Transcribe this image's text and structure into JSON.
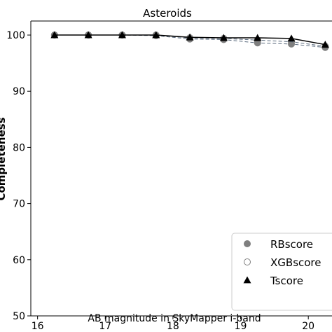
{
  "chart_data": {
    "type": "line",
    "title": "Asteroids",
    "xlabel": "AB magnitude in SkyMapper i-band",
    "ylabel": "Completeness",
    "xlim": [
      15.9,
      20.35
    ],
    "ylim": [
      50,
      102.5
    ],
    "xticks": [
      16,
      17,
      18,
      19,
      20
    ],
    "yticks": [
      50,
      60,
      70,
      80,
      90,
      100
    ],
    "grid": false,
    "legend_position": "bottom-right",
    "x": [
      16.25,
      16.75,
      17.25,
      17.75,
      18.25,
      18.75,
      19.25,
      19.75,
      20.25
    ],
    "series": [
      {
        "name": "RBscore",
        "marker": "filled-circle",
        "line": "dashed",
        "color": "#7f7f7f",
        "values": [
          100,
          100,
          100,
          99.9,
          99.3,
          99.2,
          98.6,
          98.4,
          97.8
        ]
      },
      {
        "name": "XGBscore",
        "marker": "open-circle",
        "line": "dashed",
        "color": "#7f7f7f",
        "values": [
          100,
          100,
          100,
          100,
          99.5,
          99.4,
          99.1,
          98.8,
          98.0
        ]
      },
      {
        "name": "Tscore",
        "marker": "triangle",
        "line": "solid",
        "color": "#000000",
        "values": [
          100,
          100,
          100,
          100,
          99.6,
          99.5,
          99.5,
          99.4,
          98.3
        ]
      }
    ]
  }
}
